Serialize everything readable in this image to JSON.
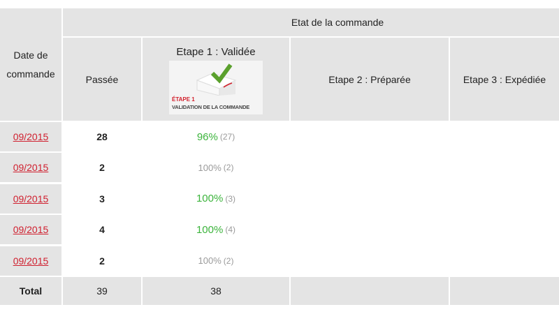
{
  "header": {
    "group_title": "Etat de la commande",
    "date_col": [
      "Date de",
      "commande"
    ],
    "passee": "Passée",
    "step1": "Etape 1 : Validée",
    "step2": "Etape 2 : Préparée",
    "step3": "Etape 3 : Expédiée",
    "step1_image": {
      "line1": "ÉTAPE 1",
      "line2": "VALIDATION DE LA COMMANDE"
    }
  },
  "rows": [
    {
      "date": "09/2015",
      "passee": "28",
      "pct": "96%",
      "count": "(27)",
      "highlight": true
    },
    {
      "date": "09/2015",
      "passee": "2",
      "pct": "100%",
      "count": "(2)",
      "highlight": false
    },
    {
      "date": "09/2015",
      "passee": "3",
      "pct": "100%",
      "count": "(3)",
      "highlight": true
    },
    {
      "date": "09/2015",
      "passee": "4",
      "pct": "100%",
      "count": "(4)",
      "highlight": true
    },
    {
      "date": "09/2015",
      "passee": "2",
      "pct": "100%",
      "count": "(2)",
      "highlight": false
    }
  ],
  "total": {
    "label": "Total",
    "passee": "39",
    "step1": "38"
  },
  "colors": {
    "header_bg": "#e4e4e4",
    "link": "#d0202f",
    "green": "#3cb43c",
    "muted": "#9a9a9a"
  }
}
